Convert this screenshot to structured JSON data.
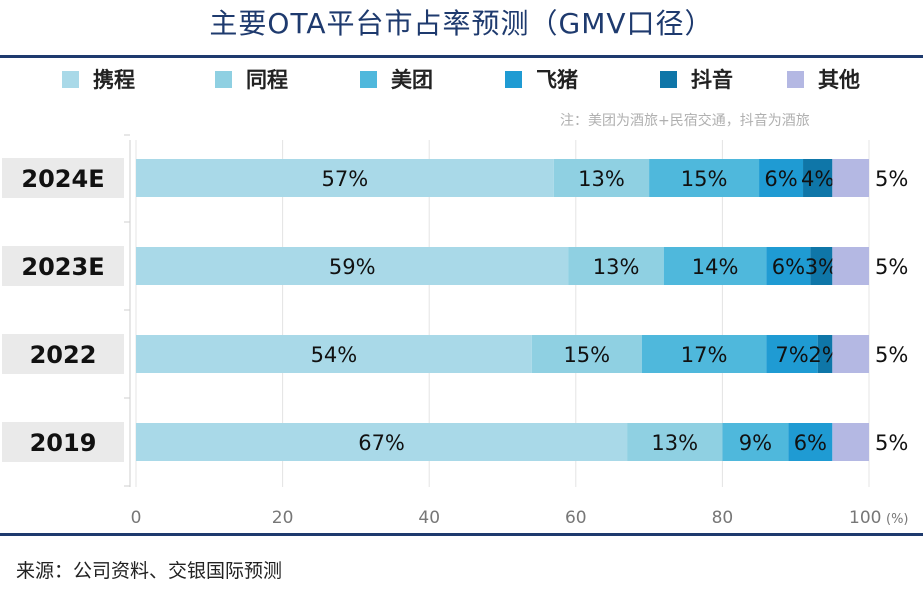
{
  "title": "主要OTA平台市占率预测（GMV口径）",
  "note": "注：美团为酒旅+民宿交通，抖音为酒旅",
  "source": "来源：公司资料、交银国际预测",
  "colors": {
    "携程": "#a9d9e8",
    "同程": "#8fd0e2",
    "美团": "#4fb8dc",
    "飞猪": "#1f9bd3",
    "抖音": "#0f76a8",
    "其他": "#b4b8e3"
  },
  "chart_data": {
    "type": "bar",
    "orientation": "horizontal",
    "stacked": true,
    "categories": [
      "2024E",
      "2023E",
      "2022",
      "2019"
    ],
    "series": [
      {
        "name": "携程",
        "values": [
          57,
          59,
          54,
          67
        ]
      },
      {
        "name": "同程",
        "values": [
          13,
          13,
          15,
          13
        ]
      },
      {
        "name": "美团",
        "values": [
          15,
          14,
          17,
          9
        ]
      },
      {
        "name": "飞猪",
        "values": [
          6,
          6,
          7,
          6
        ]
      },
      {
        "name": "抖音",
        "values": [
          4,
          3,
          2,
          0
        ]
      },
      {
        "name": "其他",
        "values": [
          5,
          5,
          5,
          5
        ]
      }
    ],
    "labels": [
      [
        "57%",
        "13%",
        "15%",
        "6%",
        "4%",
        "5%"
      ],
      [
        "59%",
        "13%",
        "14%",
        "6%",
        "3%",
        "5%"
      ],
      [
        "54%",
        "15%",
        "17%",
        "7%",
        "2%",
        "5%"
      ],
      [
        "67%",
        "13%",
        "9%",
        "6%",
        "",
        "5%"
      ]
    ],
    "xlim": [
      0,
      100
    ],
    "xticks": [
      "0",
      "20",
      "40",
      "60",
      "80",
      "100"
    ],
    "xunit": "(%)",
    "legend_position": "top",
    "grid": true
  }
}
